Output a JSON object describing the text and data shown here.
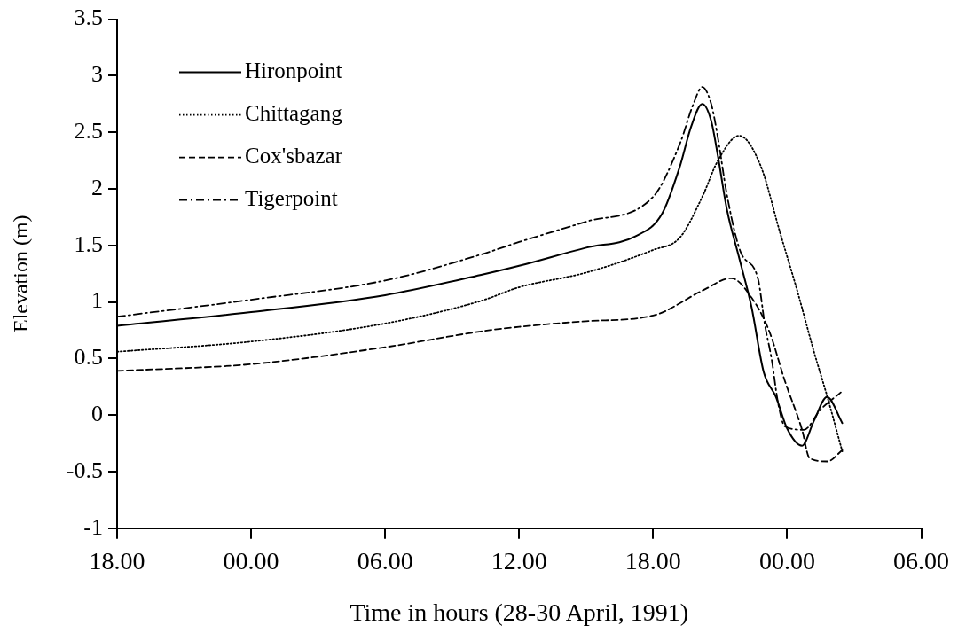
{
  "chart_data": {
    "type": "line",
    "xlabel": "Time in hours (28-30 April, 1991)",
    "ylabel": "Elevation (m)",
    "xlim": [
      "1991-04-28T18:00",
      "1991-04-30T06:00"
    ],
    "xticks": [
      {
        "value": "1991-04-28T18:00",
        "label": "18.00"
      },
      {
        "value": "1991-04-29T00:00",
        "label": "00.00"
      },
      {
        "value": "1991-04-29T06:00",
        "label": "06.00"
      },
      {
        "value": "1991-04-29T12:00",
        "label": "12.00"
      },
      {
        "value": "1991-04-29T18:00",
        "label": "18.00"
      },
      {
        "value": "1991-04-30T00:00",
        "label": "00.00"
      },
      {
        "value": "1991-04-30T06:00",
        "label": "06.00"
      }
    ],
    "ylim": [
      -1,
      3.5
    ],
    "yticks": [
      -1,
      -0.5,
      0,
      0.5,
      1,
      1.5,
      2,
      2.5,
      3,
      3.5
    ],
    "grid": false,
    "legend": "top left",
    "marker": "none",
    "series": [
      {
        "name": "Hironpoint",
        "color": "#000000",
        "line_style": "solid",
        "x": [
          "1991-04-28T18:00",
          "1991-04-29T00:00",
          "1991-04-29T06:00",
          "1991-04-29T10:18",
          "1991-04-29T12:00",
          "1991-04-29T15:00",
          "1991-04-29T17:12",
          "1991-04-29T18:24",
          "1991-04-29T19:12",
          "1991-04-29T19:42",
          "1991-04-29T20:12",
          "1991-04-29T20:36",
          "1991-04-29T20:54",
          "1991-04-29T21:18",
          "1991-04-29T21:51",
          "1991-04-29T22:24",
          "1991-04-29T22:57",
          "1991-04-29T23:30",
          "1991-04-30T00:00",
          "1991-04-30T00:40",
          "1991-04-30T01:12",
          "1991-04-30T01:47",
          "1991-04-30T02:28"
        ],
        "values": [
          0.79,
          0.91,
          1.06,
          1.24,
          1.32,
          1.48,
          1.58,
          1.78,
          2.2,
          2.55,
          2.75,
          2.6,
          2.29,
          1.82,
          1.39,
          0.96,
          0.38,
          0.16,
          -0.12,
          -0.27,
          -0.05,
          0.16,
          -0.07
        ]
      },
      {
        "name": "Chittagang",
        "color": "#000000",
        "line_style": "dotted",
        "x": [
          "1991-04-28T18:00",
          "1991-04-29T00:00",
          "1991-04-29T06:00",
          "1991-04-29T10:18",
          "1991-04-29T12:00",
          "1991-04-29T15:00",
          "1991-04-29T18:00",
          "1991-04-29T19:12",
          "1991-04-29T20:12",
          "1991-04-29T20:54",
          "1991-04-29T21:51",
          "1991-04-29T22:48",
          "1991-04-29T23:42",
          "1991-04-30T00:27",
          "1991-04-30T01:12",
          "1991-04-30T01:48",
          "1991-04-30T02:28"
        ],
        "values": [
          0.56,
          0.65,
          0.81,
          1.01,
          1.13,
          1.26,
          1.46,
          1.57,
          1.93,
          2.25,
          2.47,
          2.21,
          1.6,
          1.1,
          0.56,
          0.16,
          -0.32
        ]
      },
      {
        "name": "Cox'sbazar",
        "color": "#000000",
        "line_style": "dashed",
        "x": [
          "1991-04-28T18:00",
          "1991-04-29T00:00",
          "1991-04-29T06:00",
          "1991-04-29T10:18",
          "1991-04-29T12:00",
          "1991-04-29T15:00",
          "1991-04-29T18:00",
          "1991-04-29T20:12",
          "1991-04-29T21:30",
          "1991-04-29T22:24",
          "1991-04-29T23:12",
          "1991-04-29T23:54",
          "1991-04-30T00:40",
          "1991-04-30T01:00",
          "1991-04-30T01:48",
          "1991-04-30T02:28"
        ],
        "values": [
          0.39,
          0.45,
          0.6,
          0.74,
          0.78,
          0.83,
          0.88,
          1.1,
          1.21,
          1.04,
          0.74,
          0.3,
          -0.13,
          -0.38,
          -0.41,
          -0.31
        ]
      },
      {
        "name": "Tigerpoint",
        "color": "#000000",
        "line_style": "dashdot",
        "x": [
          "1991-04-28T18:00",
          "1991-04-29T00:00",
          "1991-04-29T06:00",
          "1991-04-29T10:18",
          "1991-04-29T12:00",
          "1991-04-29T15:00",
          "1991-04-29T18:00",
          "1991-04-29T19:12",
          "1991-04-29T19:48",
          "1991-04-29T20:12",
          "1991-04-29T20:36",
          "1991-04-29T20:54",
          "1991-04-29T21:18",
          "1991-04-29T21:54",
          "1991-04-29T22:42",
          "1991-04-29T23:00",
          "1991-04-29T23:18",
          "1991-04-29T23:36",
          "1991-04-29T23:54",
          "1991-04-30T00:45",
          "1991-04-30T01:30",
          "1991-04-30T02:24"
        ],
        "values": [
          0.87,
          1.02,
          1.19,
          1.42,
          1.53,
          1.71,
          1.93,
          2.4,
          2.75,
          2.9,
          2.75,
          2.45,
          1.95,
          1.45,
          1.2,
          0.8,
          0.5,
          0.1,
          -0.1,
          -0.13,
          0.05,
          0.2
        ]
      }
    ]
  }
}
